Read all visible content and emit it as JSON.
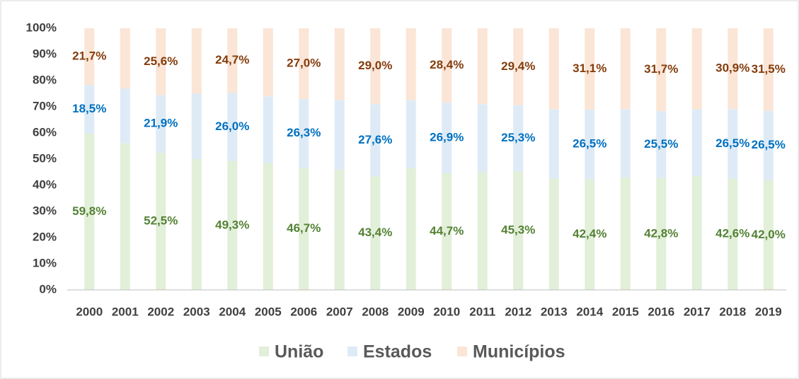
{
  "chart_data": {
    "type": "stacked_bar",
    "categories": [
      "2000",
      "2001",
      "2002",
      "2003",
      "2004",
      "2005",
      "2006",
      "2007",
      "2008",
      "2009",
      "2010",
      "2011",
      "2012",
      "2013",
      "2014",
      "2015",
      "2016",
      "2017",
      "2018",
      "2019"
    ],
    "series": [
      {
        "name": "União",
        "color": "#e2efd9",
        "label_color": "#548235",
        "values": [
          59.8,
          56,
          52.5,
          50,
          49.3,
          48.5,
          46.7,
          46,
          43.4,
          46.5,
          44.7,
          45,
          45.3,
          42.5,
          42.4,
          43,
          42.8,
          43.5,
          42.6,
          42.0
        ],
        "value_labels": [
          "59,8%",
          null,
          "52,5%",
          null,
          "49,3%",
          null,
          "46,7%",
          null,
          "43,4%",
          null,
          "44,7%",
          null,
          "45,3%",
          null,
          "42,4%",
          null,
          "42,8%",
          null,
          "42,6%",
          "42,0%"
        ]
      },
      {
        "name": "Estados",
        "color": "#deebf7",
        "label_color": "#0070c0",
        "values": [
          18.5,
          21,
          21.9,
          25,
          26.0,
          25.5,
          26.3,
          26.5,
          27.6,
          26,
          26.9,
          26,
          25.3,
          26.5,
          26.5,
          26,
          25.5,
          25.5,
          26.5,
          26.5
        ],
        "value_labels": [
          "18,5%",
          null,
          "21,9%",
          null,
          "26,0%",
          null,
          "26,3%",
          null,
          "27,6%",
          null,
          "26,9%",
          null,
          "25,3%",
          null,
          "26,5%",
          null,
          "25,5%",
          null,
          "26,5%",
          "26,5%"
        ]
      },
      {
        "name": "Municípios",
        "color": "#fbe5d6",
        "label_color": "#843c0c",
        "values": [
          21.7,
          23,
          25.6,
          25,
          24.7,
          26,
          27.0,
          27.5,
          29.0,
          27.5,
          28.4,
          29,
          29.4,
          31,
          31.1,
          31,
          31.7,
          31,
          30.9,
          31.5
        ],
        "value_labels": [
          "21,7%",
          null,
          "25,6%",
          null,
          "24,7%",
          null,
          "27,0%",
          null,
          "29,0%",
          null,
          "28,4%",
          null,
          "29,4%",
          null,
          "31,1%",
          null,
          "31,7%",
          null,
          "30,9%",
          "31,5%"
        ]
      }
    ],
    "ylim": [
      0,
      100
    ],
    "yticks": [
      {
        "value": 0,
        "label": "0%"
      },
      {
        "value": 10,
        "label": "10%"
      },
      {
        "value": 20,
        "label": "20%"
      },
      {
        "value": 30,
        "label": "30%"
      },
      {
        "value": 40,
        "label": "40%"
      },
      {
        "value": 50,
        "label": "50%"
      },
      {
        "value": 60,
        "label": "60%"
      },
      {
        "value": 70,
        "label": "70%"
      },
      {
        "value": 80,
        "label": "80%"
      },
      {
        "value": 90,
        "label": "90%"
      },
      {
        "value": 100,
        "label": "100%"
      }
    ],
    "legend": "bottom"
  }
}
